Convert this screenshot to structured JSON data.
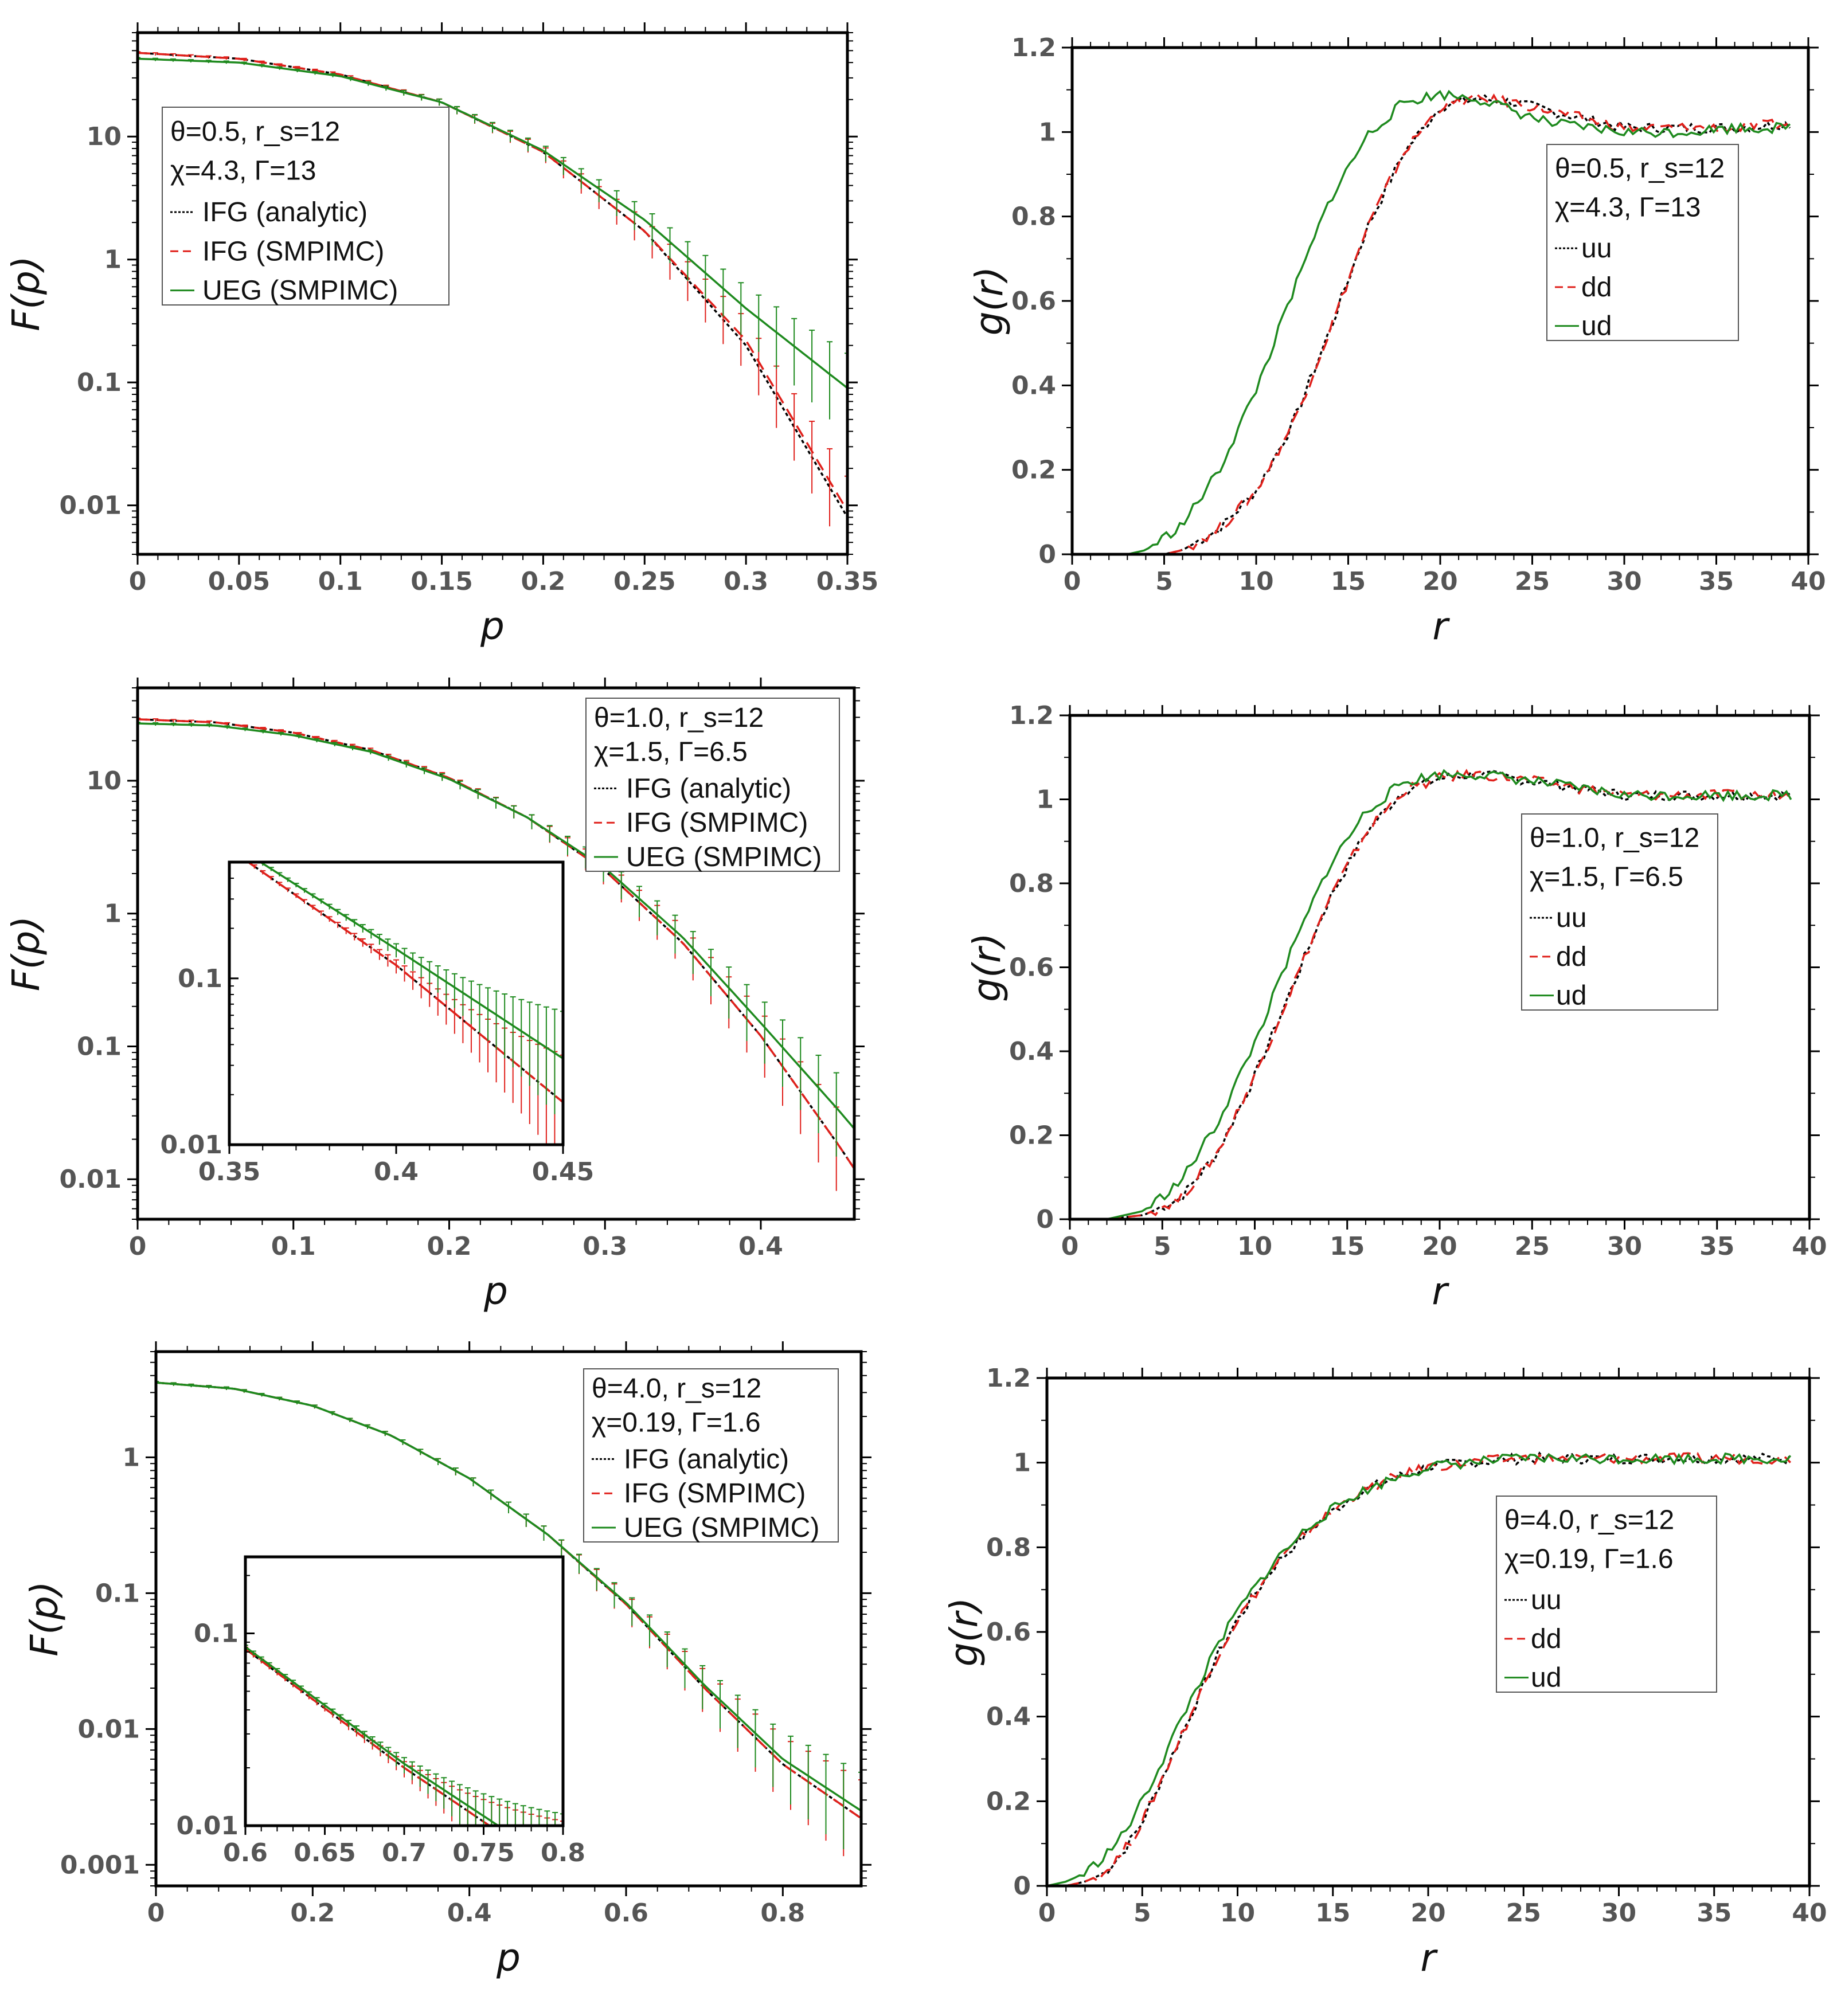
{
  "chart_data": [
    {
      "id": "panel-a",
      "type": "line",
      "yscale": "log",
      "title": "",
      "xlabel": "p",
      "ylabel": "F(p)",
      "xlim": [
        0,
        0.35
      ],
      "ylim": [
        0.004,
        70
      ],
      "xticks": [
        0,
        0.05,
        0.1,
        0.15,
        0.2,
        0.25,
        0.3,
        0.35
      ],
      "xtick_labels": [
        "0",
        "0.05",
        "0.1",
        "0.15",
        "0.2",
        "0.25",
        "0.3",
        "0.35"
      ],
      "yticks": [
        0.01,
        0.1,
        1,
        10
      ],
      "ytick_labels": [
        "0.01",
        "0.1",
        "1",
        "10"
      ],
      "legend": {
        "position": "upper-left",
        "param_line1": "θ=0.5, r_s=12",
        "param_line2": "χ=4.3, Γ=13",
        "entries": [
          "IFG (analytic)",
          "IFG (SMPIMC)",
          "UEG (SMPIMC)"
        ]
      },
      "series": [
        {
          "name": "IFG (analytic)",
          "color": "#000000",
          "style": "dotted",
          "x": [
            0,
            0.05,
            0.1,
            0.15,
            0.2,
            0.25,
            0.3,
            0.35
          ],
          "y": [
            48,
            43,
            32,
            19,
            7.5,
            1.7,
            0.2,
            0.008
          ]
        },
        {
          "name": "IFG (SMPIMC)",
          "color": "#e0201b",
          "style": "dashed",
          "errorbars": true,
          "x": [
            0,
            0.05,
            0.1,
            0.15,
            0.2,
            0.25,
            0.3,
            0.35
          ],
          "y": [
            48,
            43,
            32,
            19,
            7.5,
            1.7,
            0.22,
            0.009
          ]
        },
        {
          "name": "UEG (SMPIMC)",
          "color": "#1e8a1e",
          "style": "solid",
          "errorbars": true,
          "x": [
            0,
            0.05,
            0.1,
            0.15,
            0.2,
            0.25,
            0.3,
            0.35
          ],
          "y": [
            43,
            40,
            31,
            19,
            7.7,
            2.1,
            0.4,
            0.09
          ]
        }
      ]
    },
    {
      "id": "panel-b",
      "type": "line",
      "yscale": "linear",
      "title": "",
      "xlabel": "r",
      "ylabel": "g(r)",
      "xlim": [
        0,
        40
      ],
      "ylim": [
        0,
        1.2
      ],
      "xticks": [
        0,
        5,
        10,
        15,
        20,
        25,
        30,
        35,
        40
      ],
      "xtick_labels": [
        "0",
        "5",
        "10",
        "15",
        "20",
        "25",
        "30",
        "35",
        "40"
      ],
      "yticks": [
        0,
        0.2,
        0.4,
        0.6,
        0.8,
        1,
        1.2
      ],
      "ytick_labels": [
        "0",
        "0.2",
        "0.4",
        "0.6",
        "0.8",
        "1",
        "1.2"
      ],
      "legend": {
        "position": "right",
        "param_line1": "θ=0.5, r_s=12",
        "param_line2": "χ=4.3, Γ=13",
        "entries": [
          "uu",
          "dd",
          "ud"
        ]
      },
      "series": [
        {
          "name": "uu",
          "color": "#000000",
          "style": "dotted",
          "x": [
            0,
            5,
            6,
            8,
            10,
            12,
            14,
            16,
            18,
            20,
            22,
            24,
            26,
            28,
            30,
            33,
            36,
            39
          ],
          "y": [
            0,
            0,
            0.01,
            0.06,
            0.15,
            0.31,
            0.53,
            0.77,
            0.95,
            1.06,
            1.08,
            1.07,
            1.05,
            1.03,
            1.01,
            1.01,
            1.01,
            1.02
          ]
        },
        {
          "name": "dd",
          "color": "#e0201b",
          "style": "dashed",
          "x": [
            0,
            5,
            6,
            8,
            10,
            12,
            14,
            16,
            18,
            20,
            22,
            24,
            26,
            28,
            30,
            33,
            36,
            39
          ],
          "y": [
            0,
            0,
            0.01,
            0.06,
            0.15,
            0.31,
            0.53,
            0.77,
            0.95,
            1.06,
            1.08,
            1.07,
            1.05,
            1.03,
            1.01,
            1.01,
            1.01,
            1.02
          ]
        },
        {
          "name": "ud",
          "color": "#1e8a1e",
          "style": "solid",
          "x": [
            0,
            3,
            4,
            6,
            8,
            10,
            12,
            14,
            16,
            18,
            20,
            22,
            24,
            26,
            28,
            30,
            33,
            36,
            39
          ],
          "y": [
            0,
            0,
            0.01,
            0.07,
            0.2,
            0.39,
            0.62,
            0.84,
            0.99,
            1.07,
            1.09,
            1.08,
            1.05,
            1.02,
            1.01,
            1.0,
            1.0,
            1.01,
            1.01
          ]
        }
      ]
    },
    {
      "id": "panel-c",
      "type": "line",
      "yscale": "log",
      "title": "",
      "xlabel": "p",
      "ylabel": "F(p)",
      "xlim": [
        0,
        0.46
      ],
      "ylim": [
        0.005,
        50
      ],
      "xticks": [
        0,
        0.1,
        0.2,
        0.3,
        0.4
      ],
      "xtick_labels": [
        "0",
        "0.1",
        "0.2",
        "0.3",
        "0.4"
      ],
      "yticks": [
        0.01,
        0.1,
        1,
        10
      ],
      "ytick_labels": [
        "0.01",
        "0.1",
        "1",
        "10"
      ],
      "legend": {
        "position": "upper-right",
        "param_line1": "θ=1.0, r_s=12",
        "param_line2": "χ=1.5, Γ=6.5",
        "entries": [
          "IFG (analytic)",
          "IFG (SMPIMC)",
          "UEG (SMPIMC)"
        ]
      },
      "series": [
        {
          "name": "IFG (analytic)",
          "color": "#000000",
          "style": "dotted",
          "x": [
            0,
            0.05,
            0.1,
            0.15,
            0.2,
            0.25,
            0.3,
            0.35,
            0.4,
            0.45,
            0.46
          ],
          "y": [
            29,
            27.5,
            23,
            17,
            10.5,
            5.3,
            2.1,
            0.6,
            0.12,
            0.018,
            0.012
          ]
        },
        {
          "name": "IFG (SMPIMC)",
          "color": "#e0201b",
          "style": "dashed",
          "errorbars": true,
          "x": [
            0,
            0.05,
            0.1,
            0.15,
            0.2,
            0.25,
            0.3,
            0.35,
            0.4,
            0.45,
            0.46
          ],
          "y": [
            29,
            27.5,
            23,
            17,
            10.5,
            5.3,
            2.1,
            0.6,
            0.12,
            0.018,
            0.012
          ]
        },
        {
          "name": "UEG (SMPIMC)",
          "color": "#1e8a1e",
          "style": "solid",
          "errorbars": true,
          "x": [
            0,
            0.05,
            0.1,
            0.15,
            0.2,
            0.25,
            0.3,
            0.35,
            0.4,
            0.45,
            0.46
          ],
          "y": [
            27,
            26,
            22,
            16.5,
            10.3,
            5.3,
            2.2,
            0.66,
            0.15,
            0.033,
            0.024
          ]
        }
      ],
      "inset": {
        "xlim": [
          0.35,
          0.45
        ],
        "ylim": [
          0.01,
          0.5
        ],
        "xticks": [
          0.35,
          0.4,
          0.45
        ],
        "xtick_labels": [
          "0.35",
          "0.4",
          "0.45"
        ],
        "yticks": [
          0.01,
          0.1
        ],
        "ytick_labels": [
          "0.01",
          "0.1"
        ]
      }
    },
    {
      "id": "panel-d",
      "type": "line",
      "yscale": "linear",
      "title": "",
      "xlabel": "r",
      "ylabel": "g(r)",
      "xlim": [
        0,
        40
      ],
      "ylim": [
        0,
        1.2
      ],
      "xticks": [
        0,
        5,
        10,
        15,
        20,
        25,
        30,
        35,
        40
      ],
      "xtick_labels": [
        "0",
        "5",
        "10",
        "15",
        "20",
        "25",
        "30",
        "35",
        "40"
      ],
      "yticks": [
        0,
        0.2,
        0.4,
        0.6,
        0.8,
        1,
        1.2
      ],
      "ytick_labels": [
        "0",
        "0.2",
        "0.4",
        "0.6",
        "0.8",
        "1",
        "1.2"
      ],
      "legend": {
        "position": "right",
        "param_line1": "θ=1.0, r_s=12",
        "param_line2": "χ=1.5, Γ=6.5",
        "entries": [
          "uu",
          "dd",
          "ud"
        ]
      },
      "series": [
        {
          "name": "uu",
          "color": "#000000",
          "style": "dotted",
          "x": [
            0,
            2,
            4,
            6,
            8,
            10,
            12,
            14,
            16,
            18,
            20,
            22,
            24,
            27,
            30,
            33,
            36,
            39
          ],
          "y": [
            0,
            0,
            0.01,
            0.05,
            0.16,
            0.34,
            0.55,
            0.76,
            0.92,
            1.02,
            1.05,
            1.06,
            1.05,
            1.03,
            1.01,
            1.01,
            1.01,
            1.01
          ]
        },
        {
          "name": "dd",
          "color": "#e0201b",
          "style": "dashed",
          "x": [
            0,
            2,
            4,
            6,
            8,
            10,
            12,
            14,
            16,
            18,
            20,
            22,
            24,
            27,
            30,
            33,
            36,
            39
          ],
          "y": [
            0,
            0,
            0.01,
            0.05,
            0.16,
            0.34,
            0.55,
            0.76,
            0.92,
            1.02,
            1.05,
            1.06,
            1.05,
            1.03,
            1.01,
            1.01,
            1.01,
            1.01
          ]
        },
        {
          "name": "ud",
          "color": "#1e8a1e",
          "style": "solid",
          "x": [
            0,
            2,
            4,
            6,
            8,
            10,
            12,
            14,
            16,
            18,
            20,
            22,
            24,
            27,
            30,
            33,
            36,
            39
          ],
          "y": [
            0,
            0,
            0.02,
            0.09,
            0.23,
            0.42,
            0.64,
            0.84,
            0.97,
            1.04,
            1.06,
            1.06,
            1.05,
            1.03,
            1.01,
            1.01,
            1.01,
            1.01
          ]
        }
      ]
    },
    {
      "id": "panel-e",
      "type": "line",
      "yscale": "log",
      "title": "",
      "xlabel": "p",
      "ylabel": "F(p)",
      "xlim": [
        0,
        0.9
      ],
      "ylim": [
        0.0007,
        6
      ],
      "xticks": [
        0,
        0.2,
        0.4,
        0.6,
        0.8
      ],
      "xtick_labels": [
        "0",
        "0.2",
        "0.4",
        "0.6",
        "0.8"
      ],
      "yticks": [
        0.001,
        0.01,
        0.1,
        1
      ],
      "ytick_labels": [
        "0.001",
        "0.01",
        "0.1",
        "1"
      ],
      "legend": {
        "position": "upper-right",
        "param_line1": "θ=4.0, r_s=12",
        "param_line2": "χ=0.19, Γ=1.6",
        "entries": [
          "IFG (analytic)",
          "IFG (SMPIMC)",
          "UEG (SMPIMC)"
        ]
      },
      "series": [
        {
          "name": "IFG (analytic)",
          "color": "#000000",
          "style": "dotted",
          "x": [
            0,
            0.1,
            0.2,
            0.3,
            0.4,
            0.5,
            0.6,
            0.7,
            0.8,
            0.9
          ],
          "y": [
            3.55,
            3.2,
            2.4,
            1.45,
            0.7,
            0.27,
            0.083,
            0.02,
            0.0055,
            0.0022
          ]
        },
        {
          "name": "IFG (SMPIMC)",
          "color": "#e0201b",
          "style": "dashed",
          "errorbars": true,
          "x": [
            0,
            0.1,
            0.2,
            0.3,
            0.4,
            0.5,
            0.6,
            0.7,
            0.8,
            0.9
          ],
          "y": [
            3.55,
            3.2,
            2.4,
            1.45,
            0.7,
            0.27,
            0.083,
            0.02,
            0.0055,
            0.0022
          ]
        },
        {
          "name": "UEG (SMPIMC)",
          "color": "#1e8a1e",
          "style": "solid",
          "errorbars": true,
          "x": [
            0,
            0.1,
            0.2,
            0.3,
            0.4,
            0.5,
            0.6,
            0.7,
            0.8,
            0.9
          ],
          "y": [
            3.55,
            3.2,
            2.4,
            1.45,
            0.7,
            0.27,
            0.085,
            0.021,
            0.006,
            0.0025
          ]
        }
      ],
      "inset": {
        "xlim": [
          0.6,
          0.8
        ],
        "ylim": [
          0.01,
          0.25
        ],
        "xticks": [
          0.6,
          0.65,
          0.7,
          0.75,
          0.8
        ],
        "xtick_labels": [
          "0.6",
          "0.65",
          "0.7",
          "0.75",
          "0.8"
        ],
        "yticks": [
          0.01,
          0.1
        ],
        "ytick_labels": [
          "0.01",
          "0.1"
        ]
      }
    },
    {
      "id": "panel-f",
      "type": "line",
      "yscale": "linear",
      "title": "",
      "xlabel": "r",
      "ylabel": "g(r)",
      "xlim": [
        0,
        40
      ],
      "ylim": [
        0,
        1.2
      ],
      "xticks": [
        0,
        5,
        10,
        15,
        20,
        25,
        30,
        35,
        40
      ],
      "xtick_labels": [
        "0",
        "5",
        "10",
        "15",
        "20",
        "25",
        "30",
        "35",
        "40"
      ],
      "yticks": [
        0,
        0.2,
        0.4,
        0.6,
        0.8,
        1,
        1.2
      ],
      "ytick_labels": [
        "0",
        "0.2",
        "0.4",
        "0.6",
        "0.8",
        "1",
        "1.2"
      ],
      "legend": {
        "position": "right",
        "param_line1": "θ=4.0, r_s=12",
        "param_line2": "χ=0.19, Γ=1.6",
        "entries": [
          "uu",
          "dd",
          "ud"
        ]
      },
      "series": [
        {
          "name": "uu",
          "color": "#000000",
          "style": "dotted",
          "x": [
            0,
            1,
            2,
            3,
            4,
            5,
            6,
            7,
            8,
            9,
            10,
            12,
            14,
            16,
            18,
            20,
            22,
            25,
            28,
            31,
            35,
            39
          ],
          "y": [
            0,
            0,
            0.01,
            0.03,
            0.08,
            0.15,
            0.25,
            0.35,
            0.45,
            0.55,
            0.63,
            0.76,
            0.85,
            0.92,
            0.96,
            0.99,
            1.0,
            1.01,
            1.01,
            1.01,
            1.01,
            1.01
          ]
        },
        {
          "name": "dd",
          "color": "#e0201b",
          "style": "dashed",
          "x": [
            0,
            1,
            2,
            3,
            4,
            5,
            6,
            7,
            8,
            9,
            10,
            12,
            14,
            16,
            18,
            20,
            22,
            25,
            28,
            31,
            35,
            39
          ],
          "y": [
            0,
            0,
            0.01,
            0.03,
            0.08,
            0.15,
            0.25,
            0.35,
            0.45,
            0.55,
            0.63,
            0.76,
            0.85,
            0.92,
            0.96,
            0.99,
            1.0,
            1.01,
            1.01,
            1.01,
            1.01,
            1.01
          ]
        },
        {
          "name": "ud",
          "color": "#1e8a1e",
          "style": "solid",
          "x": [
            0,
            1,
            2,
            3,
            4,
            5,
            6,
            7,
            8,
            9,
            10,
            12,
            14,
            16,
            18,
            20,
            22,
            25,
            28,
            31,
            35,
            39
          ],
          "y": [
            0,
            0.01,
            0.03,
            0.07,
            0.12,
            0.2,
            0.29,
            0.39,
            0.48,
            0.57,
            0.65,
            0.77,
            0.86,
            0.92,
            0.96,
            0.99,
            1.0,
            1.01,
            1.01,
            1.01,
            1.01,
            1.01
          ]
        }
      ]
    }
  ]
}
